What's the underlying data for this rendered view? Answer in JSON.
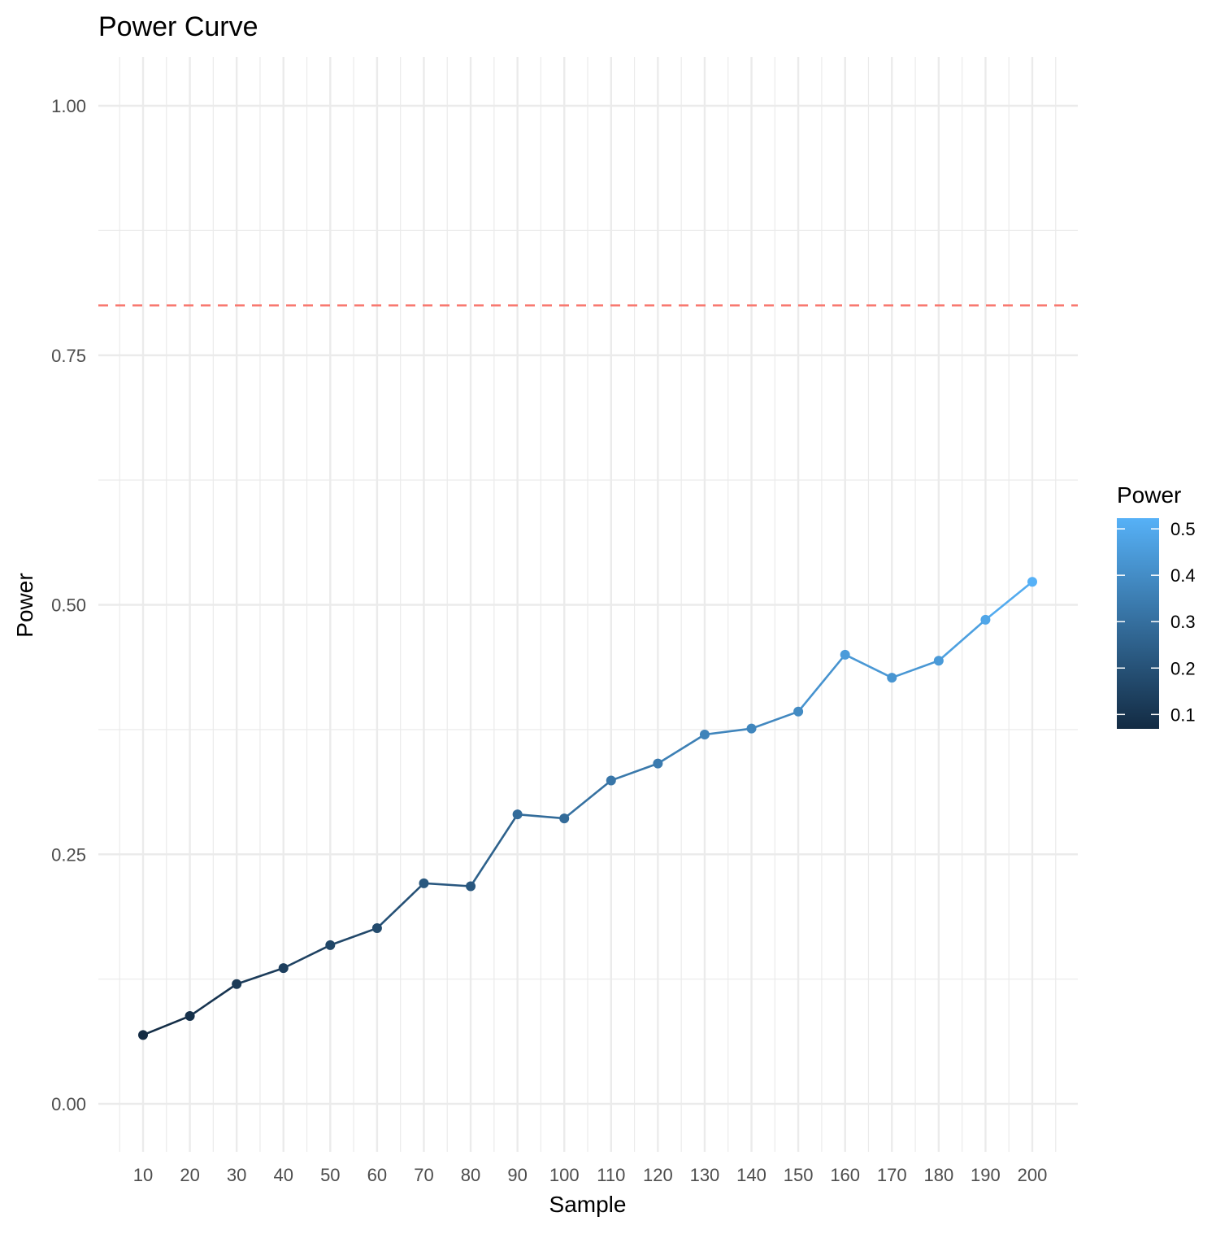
{
  "chart_data": {
    "type": "line",
    "title": "Power Curve",
    "xlabel": "Sample",
    "ylabel": "Power",
    "x": [
      10,
      20,
      30,
      40,
      50,
      60,
      70,
      80,
      90,
      100,
      110,
      120,
      130,
      140,
      150,
      160,
      170,
      180,
      190,
      200
    ],
    "series": [
      {
        "values": [
          0.069,
          0.088,
          0.12,
          0.136,
          0.159,
          0.176,
          0.221,
          0.218,
          0.29,
          0.286,
          0.324,
          0.341,
          0.37,
          0.376,
          0.393,
          0.45,
          0.427,
          0.444,
          0.485,
          0.523
        ]
      }
    ],
    "xlim": [
      5,
      205
    ],
    "ylim": [
      -0.05,
      1.05
    ],
    "xticks": [
      "10",
      "20",
      "30",
      "40",
      "50",
      "60",
      "70",
      "80",
      "90",
      "100",
      "110",
      "120",
      "130",
      "140",
      "150",
      "160",
      "170",
      "180",
      "190",
      "200"
    ],
    "yticks": [
      {
        "value": 0.0,
        "label": "0.00"
      },
      {
        "value": 0.25,
        "label": "0.25"
      },
      {
        "value": 0.5,
        "label": "0.50"
      },
      {
        "value": 0.75,
        "label": "0.75"
      },
      {
        "value": 1.0,
        "label": "1.00"
      }
    ],
    "reference_line": {
      "y": 0.8,
      "style": "dashed",
      "color": "#f8766d"
    },
    "grid": true,
    "legend": {
      "title": "Power",
      "placement": "right",
      "type": "colorbar",
      "range": [
        0.069,
        0.523
      ],
      "ticks": [
        {
          "value": 0.1,
          "label": "0.1"
        },
        {
          "value": 0.2,
          "label": "0.2"
        },
        {
          "value": 0.3,
          "label": "0.3"
        },
        {
          "value": 0.4,
          "label": "0.4"
        },
        {
          "value": 0.5,
          "label": "0.5"
        }
      ],
      "color_low": "#132b43",
      "color_high": "#56b1f7"
    }
  }
}
